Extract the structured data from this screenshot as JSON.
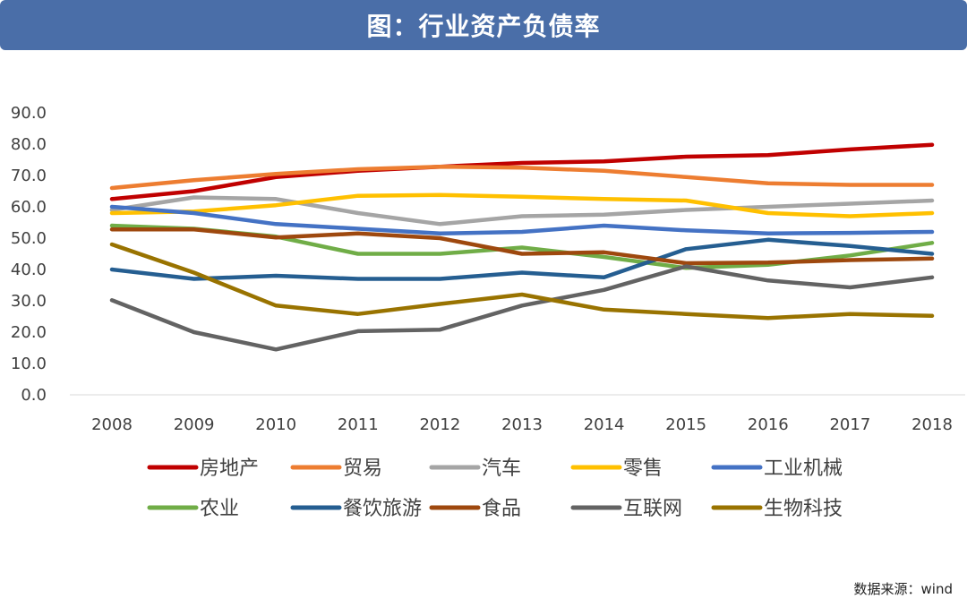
{
  "header": {
    "title": "图：行业资产负债率"
  },
  "source": "数据来源：wind",
  "chart_data": {
    "type": "line",
    "title": "图：行业资产负债率",
    "xlabel": "",
    "ylabel": "",
    "ylim": [
      0,
      90
    ],
    "yticks": [
      "0.0",
      "10.0",
      "20.0",
      "30.0",
      "40.0",
      "50.0",
      "60.0",
      "70.0",
      "80.0",
      "90.0"
    ],
    "grid": false,
    "legend": "bottom",
    "categories": [
      "2008",
      "2009",
      "2010",
      "2011",
      "2012",
      "2013",
      "2014",
      "2015",
      "2016",
      "2017",
      "2018"
    ],
    "series": [
      {
        "name": "房地产",
        "color": "#c00000",
        "values": [
          62.5,
          65,
          69.5,
          71.5,
          72.8,
          74,
          74.5,
          76,
          76.5,
          78.3,
          79.8
        ]
      },
      {
        "name": "贸易",
        "color": "#ed7d31",
        "values": [
          66,
          68.5,
          70.5,
          72,
          72.8,
          72.5,
          71.5,
          69.5,
          67.5,
          67,
          67
        ]
      },
      {
        "name": "汽车",
        "color": "#a5a5a5",
        "values": [
          59,
          63,
          62.5,
          58,
          54.5,
          57,
          57.5,
          59,
          60,
          61,
          62
        ]
      },
      {
        "name": "零售",
        "color": "#ffc000",
        "values": [
          58,
          58.5,
          60.5,
          63.5,
          63.8,
          63.2,
          62.5,
          62,
          58,
          57,
          58
        ]
      },
      {
        "name": "工业机械",
        "color": "#4472c4",
        "values": [
          60,
          58,
          54.5,
          53,
          51.5,
          52,
          54,
          52.5,
          51.5,
          51.7,
          52
        ]
      },
      {
        "name": "农业",
        "color": "#70ad47",
        "values": [
          54,
          53,
          50.5,
          45,
          45,
          47,
          44,
          40.5,
          41.5,
          44.5,
          48.5
        ]
      },
      {
        "name": "餐饮旅游",
        "color": "#255e91",
        "values": [
          40,
          37,
          38,
          37,
          37,
          39,
          37.5,
          46.5,
          49.5,
          47.5,
          45
        ]
      },
      {
        "name": "食品",
        "color": "#9e480e",
        "values": [
          52.8,
          52.8,
          50.2,
          51.5,
          50,
          45,
          45.5,
          42,
          42.2,
          43,
          43.5
        ]
      },
      {
        "name": "互联网",
        "color": "#636363",
        "values": [
          30.2,
          20,
          14.5,
          20.3,
          20.8,
          28.5,
          33.5,
          41,
          36.5,
          34.3,
          37.5
        ]
      },
      {
        "name": "生物科技",
        "color": "#997300",
        "values": [
          48,
          39,
          28.5,
          25.8,
          29,
          32,
          27.2,
          25.8,
          24.5,
          25.8,
          25.2
        ]
      }
    ]
  }
}
